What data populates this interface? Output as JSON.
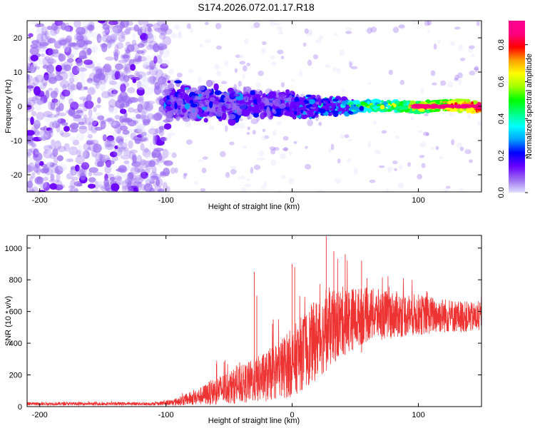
{
  "title": "S174.2026.072.01.17.R18",
  "colors": {
    "snr_line": "#ee3333",
    "axis": "#000000",
    "colormap": [
      "#e0e0ff",
      "#9a6cf0",
      "#6a00ff",
      "#0000ff",
      "#00a0ff",
      "#00ffff",
      "#00ff80",
      "#00ff00",
      "#a0ff00",
      "#ffff00",
      "#ffa000",
      "#ff0000",
      "#ff0080",
      "#ff0090"
    ]
  },
  "chart_data": [
    {
      "type": "heatmap",
      "name": "spectrogram",
      "xlabel": "Height of straight line (km)",
      "ylabel": "Frequency (Hz)",
      "xlim": [
        -210,
        150
      ],
      "ylim": [
        -25,
        25
      ],
      "xticks": [
        -200,
        -100,
        0,
        100
      ],
      "xtick_labels": [
        "-200",
        "-100",
        "0",
        "100"
      ],
      "yticks": [
        -20,
        -10,
        0,
        10,
        20
      ],
      "ytick_labels": [
        "-20",
        "-10",
        "0",
        "10",
        "20"
      ],
      "colorbar": {
        "label": "Normalized spectral amplitude",
        "range": [
          0,
          0.93
        ],
        "ticks": [
          0,
          0.2,
          0.4,
          0.6,
          0.8
        ],
        "tick_labels": [
          "0.0",
          "0.2",
          "0.4",
          "0.6",
          "0.8"
        ]
      },
      "regions": [
        {
          "x_range": [
            -210,
            -100
          ],
          "f_range": [
            -25,
            25
          ],
          "amplitude": 0.08,
          "pattern": "diffuse noise"
        },
        {
          "x_range": [
            -100,
            0
          ],
          "f_range": [
            -8,
            8
          ],
          "amplitude": 0.15,
          "pattern": "broad signal band"
        },
        {
          "x_range": [
            0,
            50
          ],
          "f_range": [
            -4,
            4
          ],
          "amplitude": 0.25,
          "pattern": "narrowing band"
        },
        {
          "x_range": [
            50,
            150
          ],
          "f_range": [
            -1.5,
            1.5
          ],
          "amplitude": 0.75,
          "pattern": "narrow strong line near 0 Hz"
        }
      ]
    },
    {
      "type": "line",
      "name": "snr",
      "xlabel": "Height of straight line (km)",
      "ylabel": "SNR (10 * v/v)",
      "xlim": [
        -210,
        150
      ],
      "ylim": [
        0,
        1080
      ],
      "xticks": [
        -200,
        -100,
        0,
        100
      ],
      "xtick_labels": [
        "-200",
        "-100",
        "0",
        "100"
      ],
      "yticks": [
        0,
        200,
        400,
        600,
        800,
        1000
      ],
      "ytick_labels": [
        "0",
        "200",
        "400",
        "600",
        "800",
        "1000"
      ],
      "envelope": [
        {
          "x": -210,
          "mean": 18,
          "spread": 10
        },
        {
          "x": -110,
          "mean": 18,
          "spread": 10
        },
        {
          "x": -95,
          "mean": 25,
          "spread": 20
        },
        {
          "x": -75,
          "mean": 60,
          "spread": 50
        },
        {
          "x": -60,
          "mean": 100,
          "spread": 90
        },
        {
          "x": -40,
          "mean": 140,
          "spread": 120
        },
        {
          "x": -20,
          "mean": 190,
          "spread": 160
        },
        {
          "x": 0,
          "mean": 280,
          "spread": 220
        },
        {
          "x": 20,
          "mean": 430,
          "spread": 260
        },
        {
          "x": 40,
          "mean": 540,
          "spread": 220
        },
        {
          "x": 60,
          "mean": 580,
          "spread": 170
        },
        {
          "x": 90,
          "mean": 580,
          "spread": 140
        },
        {
          "x": 120,
          "mean": 575,
          "spread": 110
        },
        {
          "x": 150,
          "mean": 560,
          "spread": 90
        }
      ],
      "spikes": [
        {
          "x": -60,
          "value": 270
        },
        {
          "x": -30,
          "value": 850
        },
        {
          "x": -28,
          "value": 700
        },
        {
          "x": -15,
          "value": 550
        },
        {
          "x": 0,
          "value": 900
        },
        {
          "x": 2,
          "value": 880
        },
        {
          "x": 27,
          "value": 1075
        },
        {
          "x": 33,
          "value": 980
        },
        {
          "x": 42,
          "value": 960
        },
        {
          "x": 55,
          "value": 920
        }
      ]
    }
  ]
}
